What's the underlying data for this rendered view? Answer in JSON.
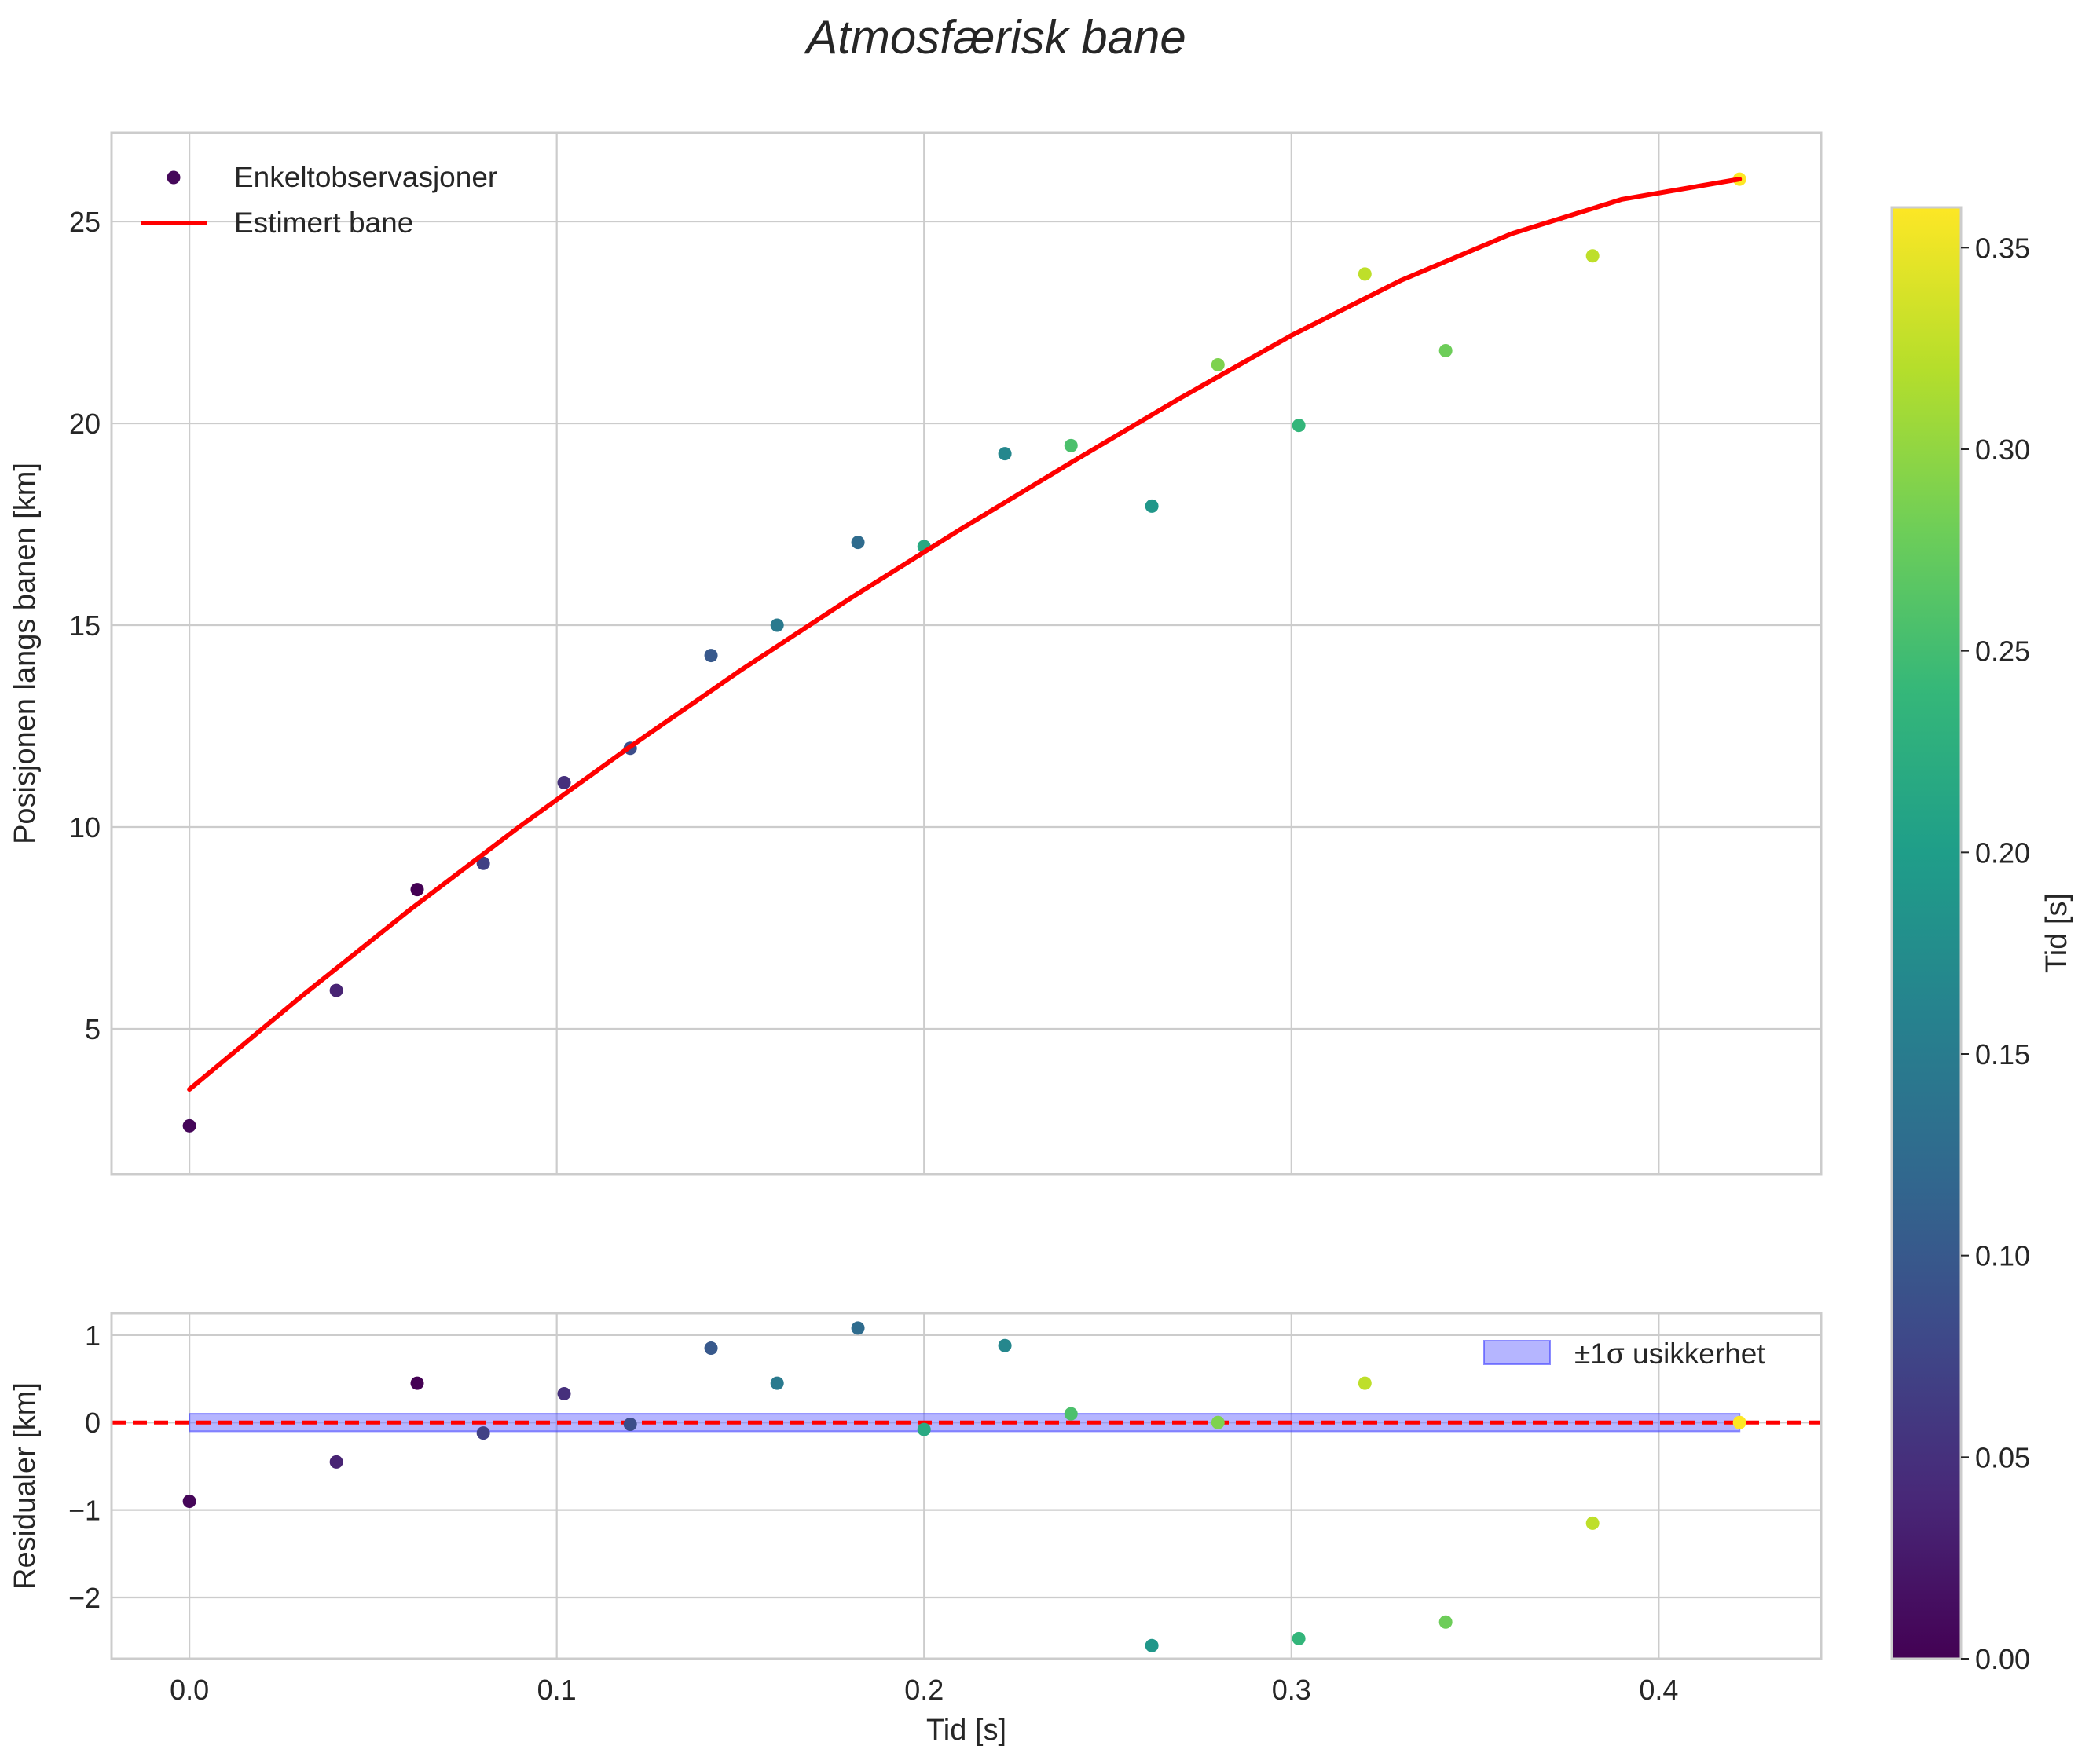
{
  "figure": {
    "title": "Atmosfærisk bane"
  },
  "chart_data": [
    {
      "type": "scatter",
      "panel": "main",
      "xlabel": "",
      "ylabel": "Posisjonen langs banen [km]",
      "xlim": [
        -0.0212,
        0.4442
      ],
      "ylim": [
        1.4,
        27.2
      ],
      "xticks": [
        0.0,
        0.1,
        0.2,
        0.3,
        0.4
      ],
      "xtick_labels_visible": false,
      "yticks": [
        5,
        10,
        15,
        20,
        25
      ],
      "ytick_labels": [
        "5",
        "10",
        "15",
        "20",
        "25"
      ],
      "grid": true,
      "legend_placement": "upper-left",
      "series": [
        {
          "name": "Enkeltobservasjoner",
          "kind": "scatter",
          "colored_by": "Tid [s]",
          "x": [
            0.0,
            0.04,
            0.062,
            0.08,
            0.102,
            0.12,
            0.142,
            0.16,
            0.182,
            0.2,
            0.222,
            0.24,
            0.262,
            0.28,
            0.302,
            0.32,
            0.342,
            0.382,
            0.422
          ],
          "y": [
            2.6,
            5.95,
            8.45,
            9.1,
            11.1,
            11.95,
            14.25,
            15.0,
            17.05,
            16.95,
            19.25,
            19.45,
            17.95,
            21.45,
            19.95,
            23.7,
            21.8,
            24.15,
            26.05
          ],
          "c": [
            0.005,
            0.036,
            0.0,
            0.07,
            0.05,
            0.085,
            0.1,
            0.147,
            0.126,
            0.218,
            0.167,
            0.256,
            0.19,
            0.289,
            0.237,
            0.325,
            0.279,
            0.325,
            0.36
          ]
        },
        {
          "name": "Estimert bane",
          "kind": "line",
          "color": "#ff0000",
          "x": [
            0.0,
            0.03,
            0.06,
            0.09,
            0.12,
            0.15,
            0.18,
            0.21,
            0.24,
            0.27,
            0.3,
            0.33,
            0.36,
            0.39,
            0.422
          ],
          "y": [
            3.5,
            5.77,
            7.95,
            10.02,
            11.99,
            13.88,
            15.67,
            17.38,
            19.03,
            20.64,
            22.18,
            23.55,
            24.7,
            25.55,
            26.05
          ]
        }
      ]
    },
    {
      "type": "scatter",
      "panel": "residuals",
      "xlabel": "Tid [s]",
      "ylabel": "Residualer [km]",
      "xlim": [
        -0.0212,
        0.4442
      ],
      "ylim": [
        -2.7,
        1.25
      ],
      "xticks": [
        0.0,
        0.1,
        0.2,
        0.3,
        0.4
      ],
      "xtick_labels": [
        "0.0",
        "0.1",
        "0.2",
        "0.3",
        "0.4"
      ],
      "yticks": [
        -2,
        -1,
        0,
        1
      ],
      "ytick_labels": [
        "−2",
        "−1",
        "0",
        "1"
      ],
      "grid": true,
      "legend_placement": "upper-right",
      "zero_line": {
        "y": 0,
        "color": "#ff0000",
        "style": "dashed"
      },
      "band": {
        "name": "±1σ usikkerhet",
        "lower": -0.1,
        "upper": 0.1,
        "x_range": [
          0.0,
          0.422
        ],
        "color": "#6b6bff"
      },
      "series": [
        {
          "name": "residuals",
          "kind": "scatter",
          "colored_by": "Tid [s]",
          "x": [
            0.0,
            0.04,
            0.062,
            0.08,
            0.102,
            0.12,
            0.142,
            0.16,
            0.182,
            0.2,
            0.222,
            0.24,
            0.262,
            0.28,
            0.302,
            0.32,
            0.342,
            0.382,
            0.422
          ],
          "y": [
            -0.9,
            -0.45,
            0.45,
            -0.12,
            0.33,
            -0.02,
            0.85,
            0.45,
            1.08,
            -0.08,
            0.88,
            0.1,
            -2.55,
            0.0,
            -2.47,
            0.45,
            -2.28,
            -1.15,
            0.0
          ],
          "c": [
            0.005,
            0.036,
            0.0,
            0.07,
            0.05,
            0.085,
            0.1,
            0.147,
            0.126,
            0.218,
            0.167,
            0.256,
            0.19,
            0.289,
            0.237,
            0.325,
            0.279,
            0.325,
            0.36
          ]
        }
      ]
    },
    {
      "type": "colorbar",
      "label": "Tid [s]",
      "colormap": "viridis",
      "range": [
        0.0,
        0.36
      ],
      "ticks": [
        0.0,
        0.05,
        0.1,
        0.15,
        0.2,
        0.25,
        0.3,
        0.35
      ],
      "tick_labels": [
        "0.00",
        "0.05",
        "0.10",
        "0.15",
        "0.20",
        "0.25",
        "0.30",
        "0.35"
      ]
    }
  ]
}
